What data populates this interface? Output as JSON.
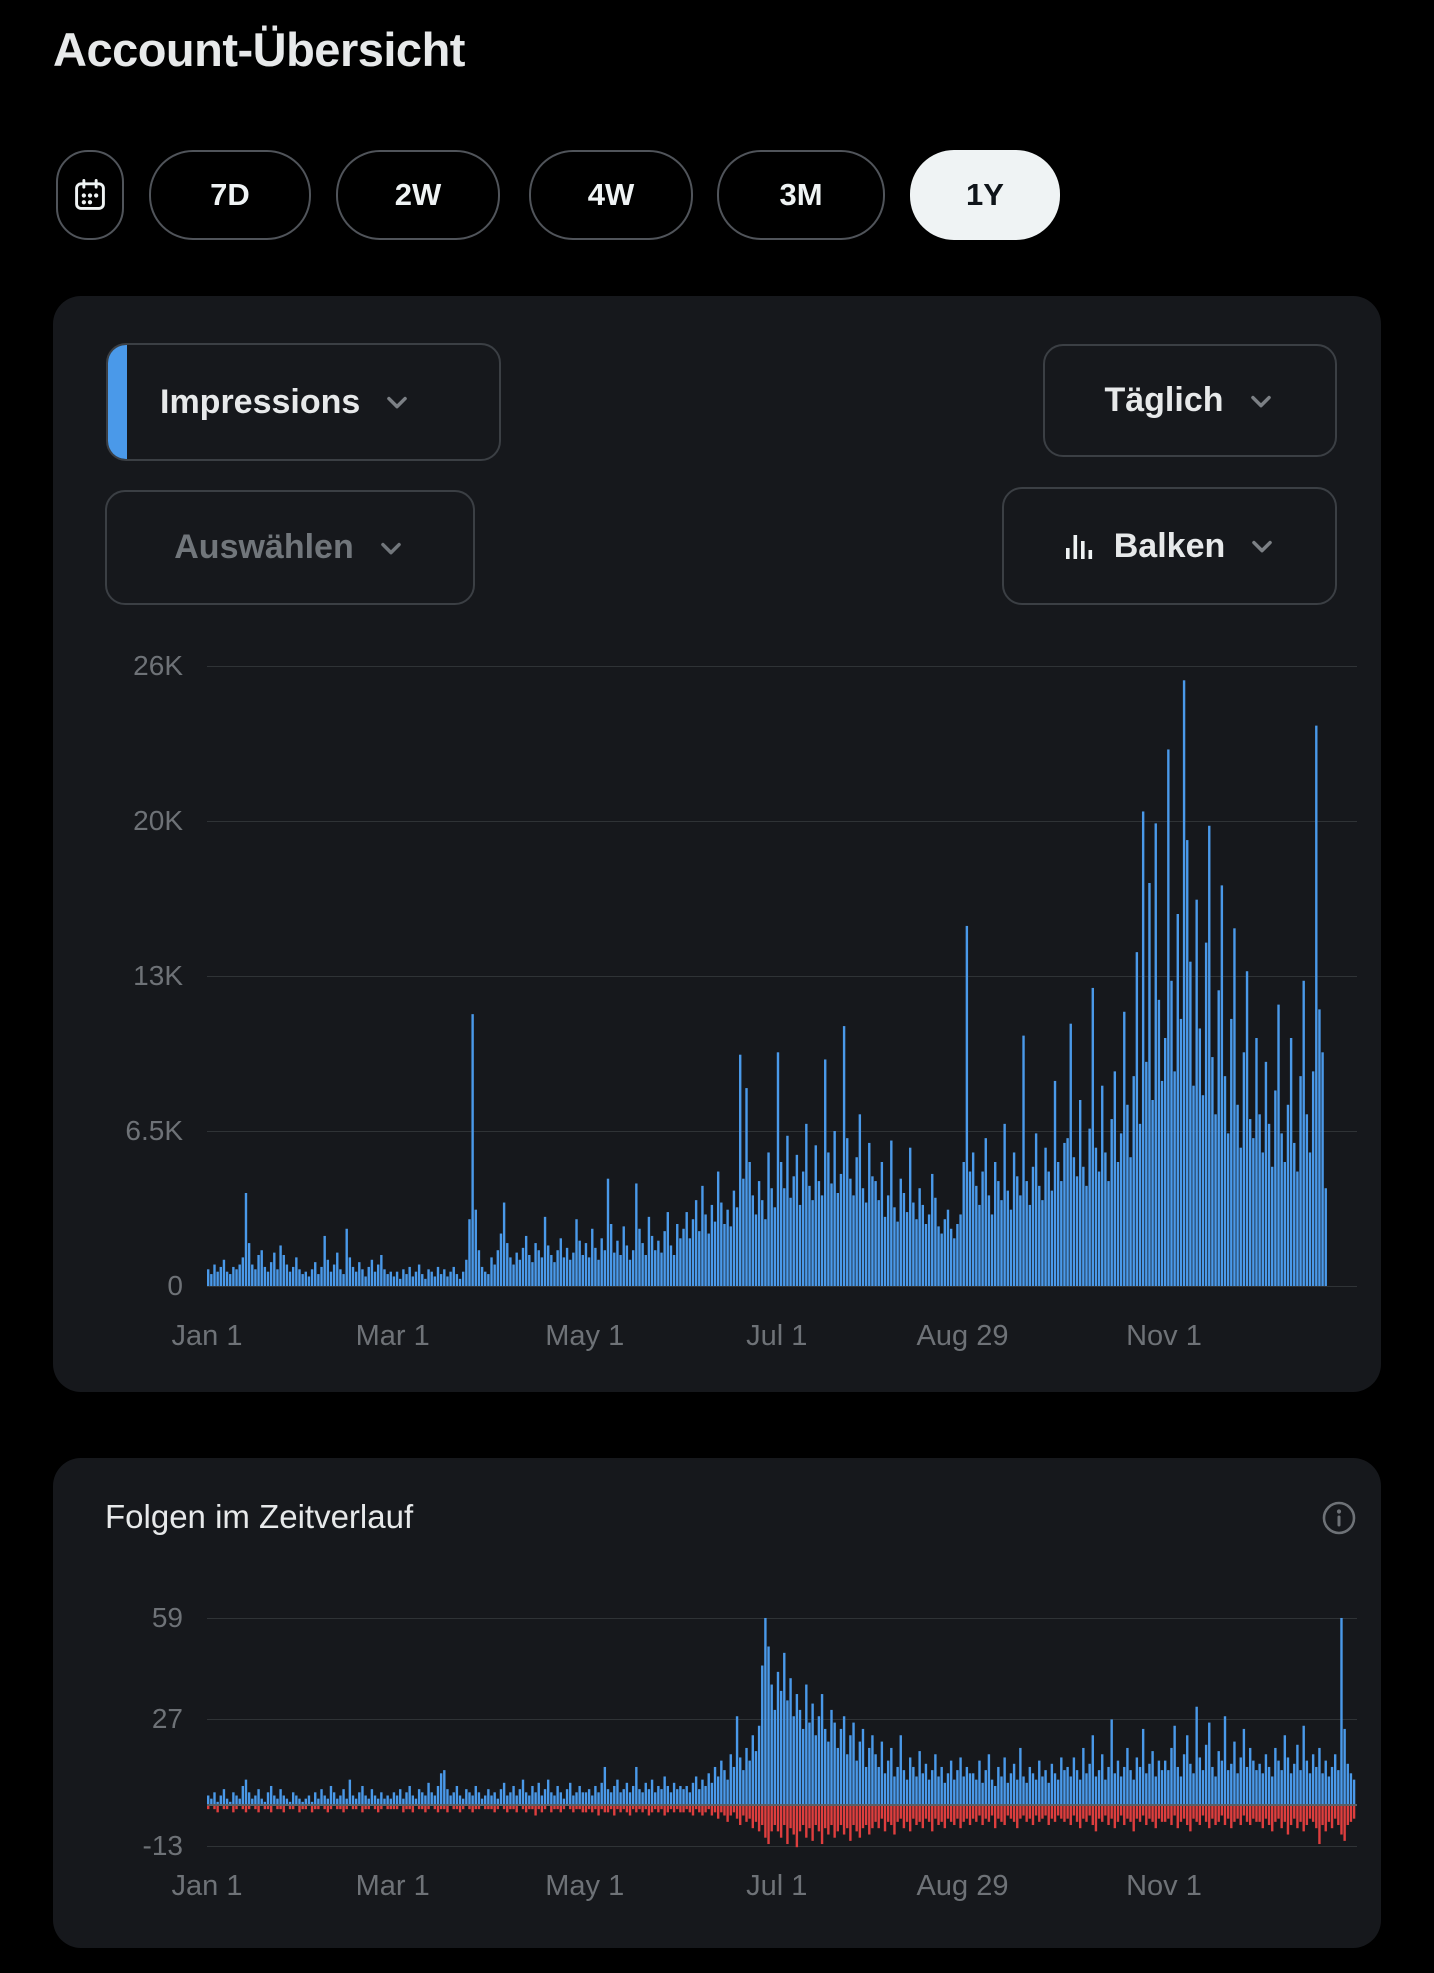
{
  "page": {
    "title": "Account-Übersicht"
  },
  "toolbar": {
    "calendar_icon": "calendar-icon",
    "ranges": [
      "7D",
      "2W",
      "4W",
      "3M",
      "1Y"
    ],
    "selected_range": "1Y"
  },
  "impressions_card": {
    "metric_selector": "Impressions",
    "interval_selector": "Täglich",
    "compare_selector": "Auswählen",
    "chart_type_selector": "Balken",
    "chart_type_icon": "bar-chart-icon"
  },
  "follows_card": {
    "title": "Folgen im Zeitverlauf",
    "info_icon": "info-icon"
  },
  "colors": {
    "background": "#000000",
    "card": "#16181c",
    "bar_blue": "#4a99e9",
    "bar_red": "#de3e3e",
    "accent_blue": "#4a99e9",
    "text_primary": "#e7e9ea",
    "text_secondary": "#71767b",
    "selected_pill_bg": "#eff3f4",
    "selected_pill_text": "#0f1419",
    "gridline": "#2f3336",
    "zero_line": "#5b5f63"
  },
  "chart_data": [
    {
      "type": "bar",
      "title": "Impressions",
      "interval": "Täglich",
      "legend_position": "none",
      "grid": true,
      "ylim": [
        0,
        26000
      ],
      "y_ticks": [
        "26K",
        "20K",
        "13K",
        "6.5K",
        "0"
      ],
      "y_tick_values": [
        26000,
        20000,
        13000,
        6500,
        0
      ],
      "x_ticks": [
        {
          "label": "Jan 1",
          "day": 0
        },
        {
          "label": "Mar 1",
          "day": 59
        },
        {
          "label": "May 1",
          "day": 120
        },
        {
          "label": "Jul 1",
          "day": 181
        },
        {
          "label": "Aug 29",
          "day": 240
        },
        {
          "label": "Nov 1",
          "day": 304
        }
      ],
      "values": [
        700,
        500,
        900,
        600,
        800,
        1100,
        600,
        500,
        800,
        700,
        900,
        1200,
        3900,
        1800,
        900,
        700,
        1300,
        1500,
        800,
        600,
        1000,
        1400,
        700,
        1700,
        1300,
        900,
        600,
        800,
        1200,
        700,
        500,
        600,
        400,
        700,
        1000,
        500,
        800,
        2100,
        1100,
        600,
        900,
        1400,
        700,
        500,
        2400,
        1200,
        800,
        600,
        1000,
        700,
        400,
        800,
        1100,
        600,
        900,
        1300,
        700,
        500,
        600,
        400,
        600,
        300,
        700,
        500,
        800,
        400,
        600,
        900,
        500,
        300,
        700,
        600,
        400,
        800,
        500,
        700,
        400,
        600,
        800,
        500,
        300,
        600,
        1100,
        2800,
        11400,
        3200,
        1500,
        800,
        600,
        500,
        1200,
        900,
        1500,
        2200,
        3500,
        1800,
        1200,
        900,
        1400,
        1100,
        1600,
        2100,
        1300,
        1000,
        1800,
        1500,
        1200,
        2900,
        1700,
        1300,
        1000,
        1500,
        2000,
        1200,
        1600,
        1100,
        1400,
        2800,
        1900,
        1300,
        1800,
        1200,
        2400,
        1600,
        1100,
        2000,
        1500,
        4500,
        2600,
        1400,
        1900,
        1300,
        2500,
        1700,
        1100,
        1500,
        4300,
        2400,
        1800,
        1300,
        2900,
        2100,
        1500,
        1900,
        1400,
        2300,
        3100,
        1700,
        1300,
        2600,
        2000,
        2400,
        3100,
        2000,
        2800,
        3600,
        2300,
        4200,
        3000,
        2200,
        3400,
        2700,
        4800,
        3500,
        2600,
        3200,
        2500,
        4000,
        3300,
        9700,
        4500,
        8300,
        5200,
        3800,
        3000,
        4400,
        3600,
        2800,
        5600,
        4100,
        3300,
        9800,
        5200,
        4100,
        6300,
        3700,
        4600,
        5500,
        3400,
        4800,
        6800,
        4200,
        3600,
        5900,
        4400,
        3800,
        9500,
        5600,
        4300,
        6500,
        3900,
        4700,
        10900,
        6200,
        4500,
        3800,
        5400,
        7200,
        4100,
        3500,
        6000,
        4600,
        4400,
        3600,
        5200,
        2900,
        3800,
        6100,
        3300,
        2700,
        4500,
        3900,
        3100,
        5800,
        3500,
        2800,
        4100,
        3400,
        2600,
        3000,
        4700,
        3700,
        2500,
        2200,
        2800,
        3200,
        2400,
        2000,
        2600,
        3000,
        5200,
        15100,
        4800,
        5600,
        4200,
        3400,
        4800,
        6200,
        3800,
        3000,
        5200,
        4400,
        3600,
        6800,
        4000,
        3200,
        5600,
        4600,
        3800,
        10500,
        4400,
        3400,
        5000,
        6400,
        4200,
        3600,
        5800,
        4800,
        4000,
        8600,
        5200,
        4400,
        6000,
        6200,
        11000,
        5400,
        4600,
        7800,
        5000,
        4200,
        6600,
        12500,
        5800,
        4800,
        8400,
        5600,
        4400,
        7000,
        9000,
        5200,
        6400,
        11500,
        7600,
        5400,
        8800,
        14000,
        6800,
        19900,
        9400,
        16900,
        7800,
        19400,
        12000,
        8600,
        10400,
        22500,
        12800,
        9000,
        15600,
        11200,
        25400,
        18700,
        13600,
        8400,
        16200,
        10800,
        8000,
        14400,
        19300,
        9600,
        7200,
        12400,
        16800,
        8800,
        6400,
        11200,
        15000,
        7600,
        5800,
        9800,
        13200,
        7000,
        6200,
        10400,
        7200,
        5600,
        9400,
        6800,
        5000,
        8200,
        11800,
        6400,
        5200,
        7600,
        10400,
        6000,
        4800,
        8800,
        12800,
        7200,
        5600,
        9000,
        23500,
        11600,
        9800,
        4100,
        0,
        0,
        0,
        0,
        0,
        0,
        0,
        0,
        0
      ]
    },
    {
      "type": "bar",
      "title": "Folgen im Zeitverlauf",
      "legend_position": "none",
      "grid": true,
      "ylim": [
        -13,
        63
      ],
      "y_ticks": [
        "59",
        "27",
        "-13"
      ],
      "y_tick_values": [
        59,
        27,
        -13
      ],
      "x_ticks": [
        {
          "label": "Jan 1",
          "day": 0
        },
        {
          "label": "Mar 1",
          "day": 59
        },
        {
          "label": "May 1",
          "day": 120
        },
        {
          "label": "Jul 1",
          "day": 181
        },
        {
          "label": "Aug 29",
          "day": 240
        },
        {
          "label": "Nov 1",
          "day": 304
        }
      ],
      "series": [
        {
          "name": "Follows",
          "color": "#4a99e9",
          "values": [
            3,
            2,
            4,
            1,
            3,
            5,
            2,
            1,
            4,
            3,
            2,
            6,
            8,
            4,
            2,
            3,
            5,
            2,
            1,
            4,
            6,
            3,
            2,
            5,
            3,
            2,
            1,
            4,
            3,
            2,
            1,
            2,
            3,
            1,
            4,
            2,
            5,
            3,
            2,
            6,
            4,
            2,
            3,
            5,
            2,
            8,
            3,
            2,
            4,
            6,
            3,
            2,
            5,
            3,
            2,
            4,
            2,
            3,
            2,
            4,
            3,
            5,
            2,
            4,
            6,
            3,
            2,
            5,
            4,
            3,
            7,
            4,
            3,
            6,
            10,
            11,
            5,
            3,
            4,
            6,
            3,
            2,
            5,
            4,
            3,
            6,
            4,
            2,
            3,
            5,
            3,
            4,
            2,
            5,
            7,
            3,
            4,
            6,
            3,
            5,
            8,
            4,
            3,
            6,
            4,
            7,
            3,
            5,
            8,
            4,
            3,
            6,
            4,
            2,
            5,
            7,
            3,
            4,
            6,
            4,
            4,
            5,
            3,
            6,
            4,
            7,
            12,
            5,
            4,
            6,
            8,
            4,
            5,
            7,
            4,
            6,
            12,
            5,
            4,
            7,
            5,
            8,
            4,
            6,
            5,
            9,
            6,
            4,
            7,
            5,
            6,
            5,
            6,
            4,
            7,
            9,
            5,
            8,
            6,
            10,
            7,
            12,
            9,
            14,
            11,
            8,
            16,
            12,
            28,
            15,
            11,
            18,
            14,
            22,
            17,
            25,
            44,
            59,
            50,
            38,
            30,
            42,
            36,
            48,
            33,
            40,
            28,
            35,
            30,
            24,
            38,
            26,
            32,
            22,
            28,
            35,
            24,
            20,
            30,
            26,
            18,
            24,
            28,
            16,
            22,
            26,
            14,
            20,
            24,
            12,
            18,
            22,
            16,
            12,
            20,
            10,
            14,
            18,
            9,
            12,
            22,
            11,
            8,
            15,
            12,
            9,
            17,
            10,
            13,
            8,
            11,
            16,
            9,
            12,
            7,
            10,
            14,
            8,
            11,
            15,
            9,
            12,
            10,
            10,
            8,
            14,
            7,
            11,
            16,
            8,
            6,
            12,
            9,
            15,
            7,
            10,
            13,
            8,
            18,
            9,
            7,
            12,
            10,
            8,
            14,
            9,
            11,
            7,
            13,
            10,
            8,
            15,
            11,
            12,
            9,
            15,
            11,
            8,
            18,
            10,
            13,
            22,
            9,
            11,
            16,
            8,
            12,
            27,
            10,
            14,
            9,
            12,
            18,
            11,
            8,
            15,
            12,
            24,
            10,
            13,
            17,
            9,
            14,
            11,
            14,
            11,
            18,
            25,
            12,
            9,
            16,
            22,
            13,
            10,
            31,
            15,
            11,
            19,
            26,
            12,
            9,
            17,
            14,
            28,
            11,
            13,
            20,
            10,
            15,
            24,
            12,
            18,
            14,
            11,
            13,
            10,
            16,
            12,
            9,
            18,
            14,
            11,
            22,
            15,
            10,
            13,
            19,
            11,
            25,
            14,
            10,
            16,
            12,
            18,
            10,
            14,
            9,
            12,
            16,
            11,
            59,
            24,
            13,
            10,
            8
          ]
        },
        {
          "name": "Unfollows",
          "color": "#de3e3e",
          "values": [
            -1,
            0,
            -1,
            -2,
            0,
            -1,
            -1,
            0,
            -2,
            -1,
            0,
            -1,
            -2,
            -1,
            0,
            -1,
            -2,
            0,
            -1,
            -1,
            -2,
            0,
            -1,
            -1,
            -2,
            0,
            -1,
            -1,
            0,
            -2,
            -1,
            -1,
            0,
            -2,
            -1,
            -1,
            0,
            -1,
            -2,
            -1,
            0,
            -1,
            -1,
            -2,
            -1,
            0,
            -1,
            -1,
            0,
            -2,
            -1,
            -1,
            0,
            -1,
            -2,
            -1,
            0,
            -1,
            -1,
            -1,
            -1,
            0,
            -2,
            -1,
            -1,
            -2,
            0,
            -1,
            -1,
            -2,
            -1,
            0,
            -1,
            -2,
            -1,
            -1,
            -2,
            0,
            -1,
            -1,
            -2,
            -1,
            0,
            -1,
            -2,
            -1,
            -1,
            0,
            -1,
            -1,
            -1,
            -2,
            -1,
            0,
            -1,
            -2,
            -1,
            -1,
            -2,
            0,
            -1,
            -2,
            -1,
            -1,
            -3,
            -1,
            -2,
            -1,
            0,
            -2,
            -1,
            -1,
            -2,
            -1,
            0,
            -1,
            -2,
            -1,
            -1,
            -2,
            -2,
            -1,
            -2,
            -1,
            -3,
            -1,
            -2,
            -2,
            -1,
            -3,
            -1,
            -2,
            -1,
            -2,
            -3,
            -1,
            -2,
            -1,
            -2,
            -1,
            -3,
            -2,
            -1,
            -2,
            -1,
            -3,
            -2,
            -1,
            -2,
            -1,
            -2,
            -2,
            -1,
            -2,
            -3,
            -1,
            -2,
            -3,
            -2,
            -1,
            -3,
            -2,
            -4,
            -2,
            -3,
            -5,
            -3,
            -2,
            -4,
            -6,
            -3,
            -5,
            -4,
            -7,
            -5,
            -8,
            -6,
            -10,
            -12,
            -8,
            -6,
            -8,
            -10,
            -6,
            -12,
            -7,
            -9,
            -13,
            -8,
            -6,
            -10,
            -7,
            -11,
            -6,
            -8,
            -12,
            -7,
            -9,
            -6,
            -10,
            -8,
            -6,
            -9,
            -7,
            -11,
            -6,
            -8,
            -10,
            -7,
            -6,
            -9,
            -7,
            -5,
            -7,
            -4,
            -8,
            -5,
            -6,
            -9,
            -5,
            -4,
            -7,
            -5,
            -8,
            -4,
            -6,
            -5,
            -7,
            -4,
            -5,
            -8,
            -4,
            -6,
            -5,
            -7,
            -4,
            -5,
            -6,
            -4,
            -7,
            -5,
            -4,
            -6,
            -4,
            -5,
            -3,
            -6,
            -4,
            -5,
            -3,
            -7,
            -4,
            -5,
            -6,
            -3,
            -4,
            -5,
            -7,
            -4,
            -3,
            -5,
            -4,
            -6,
            -3,
            -5,
            -4,
            -3,
            -6,
            -4,
            -5,
            -3,
            -4,
            -5,
            -4,
            -6,
            -3,
            -5,
            -7,
            -4,
            -5,
            -3,
            -6,
            -8,
            -4,
            -5,
            -3,
            -6,
            -4,
            -7,
            -5,
            -3,
            -6,
            -4,
            -5,
            -8,
            -4,
            -5,
            -3,
            -6,
            -4,
            -5,
            -7,
            -4,
            -5,
            -5,
            -4,
            -6,
            -3,
            -7,
            -5,
            -4,
            -6,
            -8,
            -4,
            -5,
            -6,
            -3,
            -5,
            -7,
            -4,
            -6,
            -5,
            -3,
            -6,
            -4,
            -7,
            -5,
            -4,
            -6,
            -3,
            -5,
            -6,
            -4,
            -5,
            -5,
            -7,
            -4,
            -6,
            -8,
            -5,
            -4,
            -7,
            -5,
            -9,
            -6,
            -4,
            -7,
            -5,
            -8,
            -6,
            -4,
            -5,
            -7,
            -12,
            -6,
            -8,
            -5,
            -7,
            -4,
            -6,
            -9,
            -11,
            -6,
            -5,
            -4
          ]
        }
      ]
    }
  ]
}
